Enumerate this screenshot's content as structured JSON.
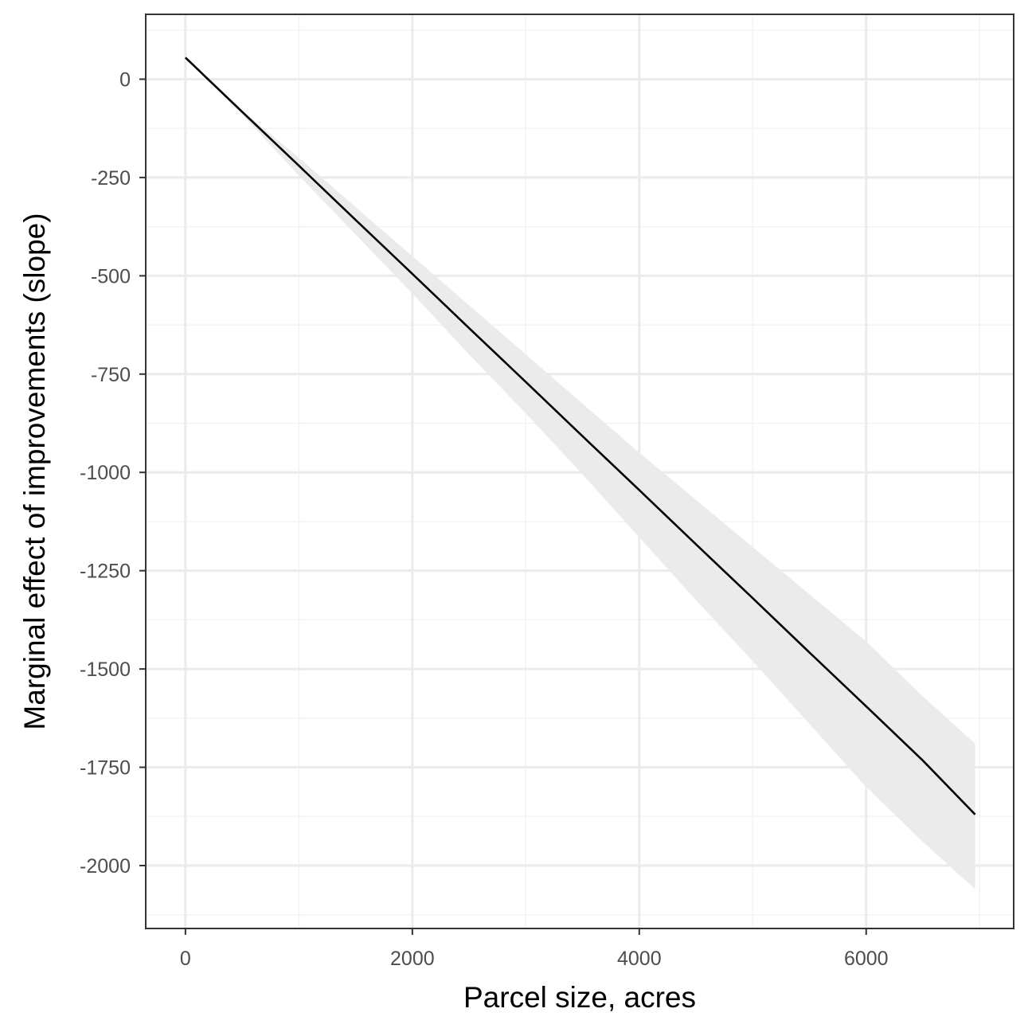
{
  "chart_data": {
    "type": "line",
    "title": "",
    "xlabel": "Parcel size, acres",
    "ylabel": "Marginal effect of improvements (slope)",
    "xlim": [
      -350,
      7300
    ],
    "ylim": [
      -2160,
      165
    ],
    "x_ticks": [
      0,
      2000,
      4000,
      6000
    ],
    "x_tick_labels": [
      "0",
      "2000",
      "4000",
      "6000"
    ],
    "x_minor_ticks": [
      1000,
      3000,
      5000,
      7000
    ],
    "y_ticks": [
      0,
      -250,
      -500,
      -750,
      -1000,
      -1250,
      -1500,
      -1750,
      -2000
    ],
    "y_tick_labels": [
      "0",
      "-250",
      "-500",
      "-750",
      "-1000",
      "-1250",
      "-1500",
      "-1750",
      "-2000"
    ],
    "y_minor_ticks": [
      125,
      -125,
      -375,
      -625,
      -875,
      -1125,
      -1375,
      -1625,
      -1875,
      -2125
    ],
    "grid": true,
    "legend": "none",
    "series": [
      {
        "x": [
          0,
          500,
          1000,
          1500,
          2000,
          2500,
          3000,
          3500,
          4000,
          4500,
          5000,
          5500,
          6000,
          6500,
          6960
        ],
        "y": [
          55,
          -83,
          -220,
          -358,
          -495,
          -633,
          -770,
          -908,
          -1045,
          -1183,
          -1320,
          -1458,
          -1595,
          -1733,
          -1870
        ],
        "ci_lower": [
          55,
          -90,
          -245,
          -395,
          -545,
          -700,
          -850,
          -1005,
          -1165,
          -1325,
          -1480,
          -1640,
          -1800,
          -1940,
          -2060
        ],
        "ci_upper": [
          55,
          -80,
          -200,
          -325,
          -450,
          -575,
          -700,
          -825,
          -950,
          -1070,
          -1190,
          -1310,
          -1430,
          -1570,
          -1690
        ],
        "line_color": "#000000",
        "band_color": "#ebebeb"
      }
    ],
    "colors": {
      "panel_border": "#333333",
      "grid_major": "#ebebeb",
      "grid_minor": "#f3f3f3",
      "tick_label": "#4d4d4d",
      "axis_title": "#000000"
    }
  }
}
